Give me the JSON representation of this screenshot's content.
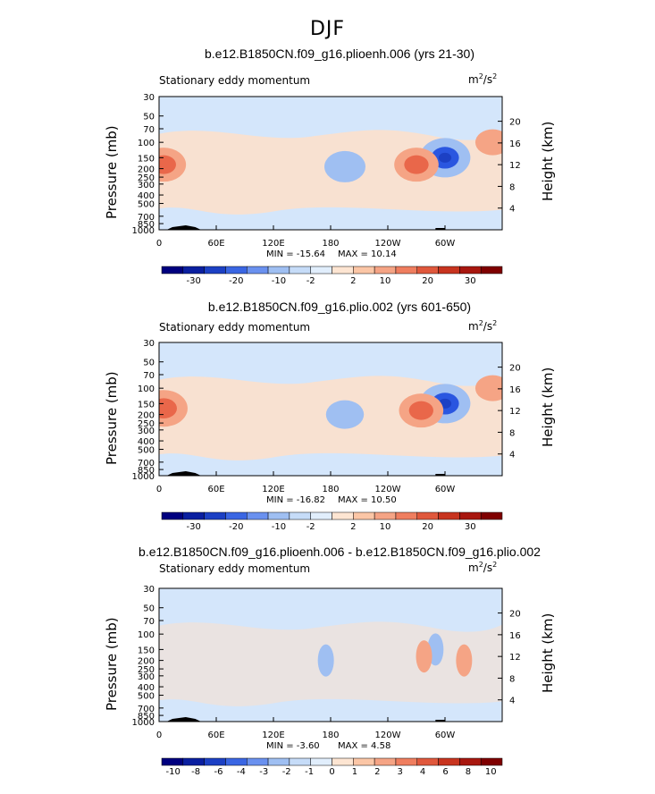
{
  "page_title": "DJF",
  "units_base": "m",
  "units_exp1": "2",
  "units_mid": "/s",
  "units_exp2": "2",
  "colors": {
    "strong_neg": "#2a56e0",
    "neg": "#9fbff2",
    "weak_neg": "#d4e6fb",
    "weak_pos": "#fce0cc",
    "pos": "#f5a485",
    "strong_pos": "#e9674a",
    "topography": "#000000"
  },
  "panels": [
    {
      "title": "b.e12.B1850CN.f09_g16.plioenh.006 (yrs 21-30)",
      "variable": "Stationary eddy momentum",
      "min_label": "MIN = -15.64",
      "max_label": "MAX = 10.14",
      "colorbar_labels": [
        "-30",
        "-20",
        "-10",
        "-2",
        "2",
        "10",
        "20",
        "30"
      ],
      "colorbar_colors": [
        "#00007f",
        "#0a1fa0",
        "#1c40c4",
        "#3a66e3",
        "#6a91ef",
        "#9fbff2",
        "#c6dcf8",
        "#e1eefc",
        "#fde5d2",
        "#fbc6a6",
        "#f5a485",
        "#ef7e5f",
        "#e0583c",
        "#c8341f",
        "#a8170f",
        "#7f0000"
      ]
    },
    {
      "title": "b.e12.B1850CN.f09_g16.plio.002 (yrs 601-650)",
      "variable": "Stationary eddy momentum",
      "min_label": "MIN = -16.82",
      "max_label": "MAX = 10.50",
      "colorbar_labels": [
        "-30",
        "-20",
        "-10",
        "-2",
        "2",
        "10",
        "20",
        "30"
      ],
      "colorbar_colors": [
        "#00007f",
        "#0a1fa0",
        "#1c40c4",
        "#3a66e3",
        "#6a91ef",
        "#9fbff2",
        "#c6dcf8",
        "#e1eefc",
        "#fde5d2",
        "#fbc6a6",
        "#f5a485",
        "#ef7e5f",
        "#e0583c",
        "#c8341f",
        "#a8170f",
        "#7f0000"
      ]
    },
    {
      "title": "b.e12.B1850CN.f09_g16.plioenh.006 - b.e12.B1850CN.f09_g16.plio.002",
      "variable": "Stationary eddy momentum",
      "min_label": "MIN = -3.60",
      "max_label": "MAX = 4.58",
      "colorbar_labels": [
        "-10",
        "-8",
        "-6",
        "-4",
        "-3",
        "-2",
        "-1",
        "0",
        "1",
        "2",
        "3",
        "4",
        "6",
        "8",
        "10"
      ],
      "colorbar_colors": [
        "#00007f",
        "#0a1fa0",
        "#1c40c4",
        "#3a66e3",
        "#6a91ef",
        "#9fbff2",
        "#c6dcf8",
        "#e1eefc",
        "#fde5d2",
        "#fbc6a6",
        "#f5a485",
        "#ef7e5f",
        "#e0583c",
        "#c8341f",
        "#a8170f",
        "#7f0000"
      ]
    }
  ],
  "chart_data": [
    {
      "type": "heatmap",
      "title": "b.e12.B1850CN.f09_g16.plioenh.006 (yrs 21-30)",
      "subtitle": "Stationary eddy momentum",
      "units": "m2/s2",
      "xlabel": "",
      "ylabel": "Pressure (mb)",
      "ylabel_right": "Height (km)",
      "x_ticks": [
        "0",
        "60E",
        "120E",
        "180",
        "120W",
        "60W"
      ],
      "x_tick_values": [
        0,
        60,
        120,
        180,
        240,
        300
      ],
      "x_range": [
        0,
        360
      ],
      "y_ticks": [
        "30",
        "50",
        "70",
        "100",
        "150",
        "200",
        "250",
        "300",
        "400",
        "500",
        "700",
        "850",
        "1000"
      ],
      "y_range_mb": [
        1000,
        30
      ],
      "y_scale": "log",
      "height_ticks_km": [
        4,
        8,
        12,
        16,
        20
      ],
      "min": -15.64,
      "max": 10.14,
      "features": [
        {
          "kind": "negative_min",
          "lon": 300,
          "p": 150,
          "value": -15.64
        },
        {
          "kind": "negative",
          "lon": 195,
          "p": 190,
          "value": -5
        },
        {
          "kind": "positive",
          "lon": 270,
          "p": 180,
          "value": 6
        },
        {
          "kind": "positive",
          "lon": 5,
          "p": 180,
          "value": 6
        },
        {
          "kind": "positive",
          "lon": 350,
          "p": 100,
          "value": 3
        }
      ]
    },
    {
      "type": "heatmap",
      "title": "b.e12.B1850CN.f09_g16.plio.002 (yrs 601-650)",
      "subtitle": "Stationary eddy momentum",
      "units": "m2/s2",
      "xlabel": "",
      "ylabel": "Pressure (mb)",
      "ylabel_right": "Height (km)",
      "x_ticks": [
        "0",
        "60E",
        "120E",
        "180",
        "120W",
        "60W"
      ],
      "x_tick_values": [
        0,
        60,
        120,
        180,
        240,
        300
      ],
      "x_range": [
        0,
        360
      ],
      "y_ticks": [
        "30",
        "50",
        "70",
        "100",
        "150",
        "200",
        "250",
        "300",
        "400",
        "500",
        "700",
        "850",
        "1000"
      ],
      "y_range_mb": [
        1000,
        30
      ],
      "y_scale": "log",
      "height_ticks_km": [
        4,
        8,
        12,
        16,
        20
      ],
      "min": -16.82,
      "max": 10.5,
      "features": [
        {
          "kind": "negative_min",
          "lon": 300,
          "p": 150,
          "value": -16.82
        },
        {
          "kind": "negative",
          "lon": 195,
          "p": 200,
          "value": -4
        },
        {
          "kind": "positive",
          "lon": 275,
          "p": 180,
          "value": 6
        },
        {
          "kind": "positive",
          "lon": 5,
          "p": 170,
          "value": 7
        },
        {
          "kind": "positive",
          "lon": 350,
          "p": 100,
          "value": 3
        }
      ]
    },
    {
      "type": "heatmap",
      "title": "b.e12.B1850CN.f09_g16.plioenh.006 - b.e12.B1850CN.f09_g16.plio.002",
      "subtitle": "Stationary eddy momentum",
      "units": "m2/s2",
      "xlabel": "",
      "ylabel": "Pressure (mb)",
      "ylabel_right": "Height (km)",
      "x_ticks": [
        "0",
        "60E",
        "120E",
        "180",
        "120W",
        "60W"
      ],
      "x_tick_values": [
        0,
        60,
        120,
        180,
        240,
        300
      ],
      "x_range": [
        0,
        360
      ],
      "y_ticks": [
        "30",
        "50",
        "70",
        "100",
        "150",
        "200",
        "250",
        "300",
        "400",
        "500",
        "700",
        "850",
        "1000"
      ],
      "y_range_mb": [
        1000,
        30
      ],
      "y_scale": "log",
      "height_ticks_km": [
        4,
        8,
        12,
        16,
        20
      ],
      "min": -3.6,
      "max": 4.58,
      "features": [
        {
          "kind": "negative_min",
          "lon": 290,
          "p": 150,
          "value": -3.6
        },
        {
          "kind": "positive_max",
          "lon": 278,
          "p": 180,
          "value": 4.58
        },
        {
          "kind": "positive",
          "lon": 320,
          "p": 200,
          "value": 1.5
        },
        {
          "kind": "negative",
          "lon": 175,
          "p": 200,
          "value": -1
        }
      ]
    }
  ]
}
